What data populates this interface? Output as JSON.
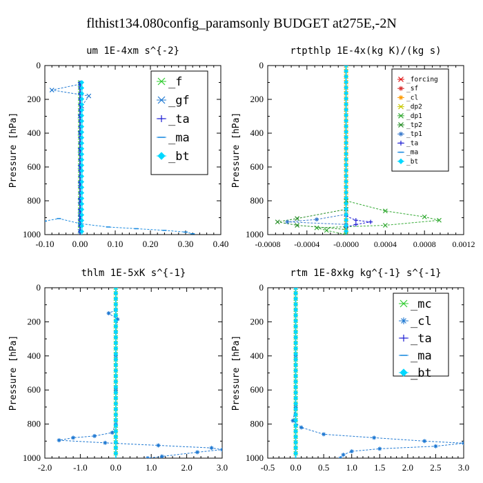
{
  "figure": {
    "title": "flthist134.080config_paramsonly  BUDGET at275E,-2N"
  },
  "chart_data": [
    {
      "type": "line",
      "title": "um  1E-4xm s^{-2}",
      "ylabel": "Pressure [hPa]",
      "xlim": [
        -0.1,
        0.4
      ],
      "ylim": [
        1000,
        0
      ],
      "xticks": [
        "-0.10",
        "0.00",
        "0.10",
        "0.20",
        "0.30",
        "0.40"
      ],
      "xtick_values": [
        -0.1,
        0.0,
        0.1,
        0.2,
        0.3,
        0.4
      ],
      "yticks": [
        "0",
        "200",
        "400",
        "600",
        "800",
        "1000"
      ],
      "ytick_values": [
        0,
        200,
        400,
        600,
        800,
        1000
      ],
      "legend_position": "top-right",
      "series": [
        {
          "name": "_f",
          "color": "#2ecc2e",
          "marker": "x",
          "points": [
            [
              0.0,
              100
            ],
            [
              0.0,
              200
            ],
            [
              0.0,
              300
            ],
            [
              0.0,
              400
            ],
            [
              0.0,
              500
            ],
            [
              0.0,
              600
            ],
            [
              0.0,
              700
            ],
            [
              0.0,
              800
            ],
            [
              0.0,
              900
            ],
            [
              0.0,
              1000
            ]
          ]
        },
        {
          "name": "_gf",
          "color": "#1e78d2",
          "marker": "x",
          "points": [
            [
              0.0,
              110
            ],
            [
              -0.08,
              145
            ],
            [
              0.025,
              180
            ],
            [
              0.005,
              240
            ],
            [
              0.0,
              300
            ],
            [
              0.0,
              400
            ],
            [
              0.0,
              500
            ],
            [
              0.0,
              600
            ],
            [
              0.0,
              700
            ],
            [
              0.0,
              800
            ],
            [
              0.0,
              860
            ],
            [
              0.0,
              900
            ],
            [
              0.0,
              940
            ],
            [
              0.0,
              980
            ]
          ]
        },
        {
          "name": "_ta",
          "color": "#1a1ad2",
          "marker": "+",
          "points": [
            [
              0.0,
              100
            ],
            [
              0.0,
              300
            ],
            [
              0.0,
              500
            ],
            [
              0.0,
              700
            ],
            [
              0.0,
              900
            ],
            [
              0.0,
              1000
            ]
          ]
        },
        {
          "name": "_ma",
          "color": "#1a8ae0",
          "marker": "dash",
          "points": [
            [
              -0.1,
              920
            ],
            [
              -0.06,
              905
            ],
            [
              0.0,
              935
            ],
            [
              0.08,
              955
            ],
            [
              0.16,
              965
            ],
            [
              0.24,
              975
            ],
            [
              0.3,
              985
            ],
            [
              0.32,
              995
            ]
          ]
        },
        {
          "name": "_bt",
          "color": "#00d8ff",
          "marker": "diamond",
          "points": [
            [
              0.005,
              100
            ],
            [
              0.005,
              300
            ],
            [
              0.005,
              500
            ],
            [
              0.005,
              700
            ],
            [
              0.005,
              900
            ],
            [
              0.005,
              1000
            ]
          ]
        }
      ]
    },
    {
      "type": "line",
      "title": "rtpthlp  1E-4x(kg K)/(kg s)",
      "ylabel": "Pressure [hPa]",
      "xlim": [
        -0.0008,
        0.0012
      ],
      "ylim": [
        1000,
        0
      ],
      "xticks": [
        "-0.0008",
        "-0.0004",
        "-0.0000",
        "0.0004",
        "0.0008",
        "0.0012"
      ],
      "xtick_values": [
        -0.0008,
        -0.0004,
        0.0,
        0.0004,
        0.0008,
        0.0012
      ],
      "yticks": [
        "0",
        "200",
        "400",
        "600",
        "800",
        "1000"
      ],
      "ytick_values": [
        0,
        200,
        400,
        600,
        800,
        1000
      ],
      "legend_position": "top-right",
      "series": [
        {
          "name": "_forcing",
          "color": "#e01010",
          "marker": "x",
          "points": [
            [
              0.0,
              0
            ],
            [
              0.0,
              200
            ],
            [
              0.0,
              400
            ],
            [
              0.0,
              600
            ],
            [
              0.0,
              800
            ],
            [
              0.0,
              1000
            ]
          ]
        },
        {
          "name": "_sf",
          "color": "#d83030",
          "marker": "star",
          "points": [
            [
              0.0,
              0
            ],
            [
              0.0,
              250
            ],
            [
              0.0,
              500
            ],
            [
              0.0,
              750
            ],
            [
              0.0,
              1000
            ]
          ]
        },
        {
          "name": "_cl",
          "color": "#ff9a00",
          "marker": "star",
          "points": [
            [
              0.0,
              0
            ],
            [
              0.0,
              300
            ],
            [
              0.0,
              600
            ],
            [
              0.0,
              900
            ],
            [
              0.0,
              1000
            ]
          ]
        },
        {
          "name": "_dp2",
          "color": "#c8c800",
          "marker": "x",
          "points": [
            [
              0.0,
              0
            ],
            [
              0.0,
              500
            ],
            [
              0.0,
              1000
            ]
          ]
        },
        {
          "name": "_dp1",
          "color": "#33aa33",
          "marker": "x",
          "points": [
            [
              0.0,
              800
            ],
            [
              0.0004,
              860
            ],
            [
              0.0008,
              895
            ],
            [
              0.00095,
              915
            ],
            [
              0.0004,
              945
            ],
            [
              -0.0003,
              960
            ],
            [
              -0.0002,
              975
            ],
            [
              0.0,
              1000
            ]
          ]
        },
        {
          "name": "_tp2",
          "color": "#228b22",
          "marker": "x",
          "points": [
            [
              0.0,
              850
            ],
            [
              -0.0005,
              905
            ],
            [
              -0.0007,
              925
            ],
            [
              -0.0005,
              945
            ],
            [
              0.0,
              970
            ]
          ]
        },
        {
          "name": "_tp1",
          "color": "#3a7acc",
          "marker": "star",
          "points": [
            [
              0.0,
              880
            ],
            [
              -0.0003,
              910
            ],
            [
              -0.0006,
              925
            ],
            [
              0.0,
              940
            ]
          ]
        },
        {
          "name": "_ta",
          "color": "#1a1ad2",
          "marker": "+",
          "points": [
            [
              0.0,
              890
            ],
            [
              0.0001,
              915
            ],
            [
              0.00025,
              925
            ],
            [
              0.0001,
              940
            ],
            [
              0.0,
              955
            ]
          ]
        },
        {
          "name": "_ma",
          "color": "#1a8ae0",
          "marker": "dash",
          "points": [
            [
              0.0,
              0
            ],
            [
              0.0,
              500
            ],
            [
              0.0,
              1000
            ]
          ]
        },
        {
          "name": "_bt",
          "color": "#00d8ff",
          "marker": "diamond",
          "points": [
            [
              0.0,
              0
            ],
            [
              0.0,
              500
            ],
            [
              0.0,
              1000
            ]
          ]
        }
      ]
    },
    {
      "type": "line",
      "title": "thlm  1E-5xK s^{-1}",
      "ylabel": "Pressure [hPa]",
      "xlim": [
        -2.0,
        3.0
      ],
      "ylim": [
        1000,
        0
      ],
      "xticks": [
        "-2.0",
        "-1.0",
        "0.0",
        "1.0",
        "2.0",
        "3.0"
      ],
      "xtick_values": [
        -2.0,
        -1.0,
        0.0,
        1.0,
        2.0,
        3.0
      ],
      "yticks": [
        "0",
        "200",
        "400",
        "600",
        "800",
        "1000"
      ],
      "ytick_values": [
        0,
        200,
        400,
        600,
        800,
        1000
      ],
      "legend_position": "top-right",
      "series": [
        {
          "name": "_mc",
          "color": "#2ecc2e",
          "marker": "x",
          "points": [
            [
              0.0,
              0
            ],
            [
              0.0,
              200
            ],
            [
              0.0,
              400
            ],
            [
              0.0,
              600
            ],
            [
              0.0,
              800
            ],
            [
              0.0,
              1000
            ]
          ]
        },
        {
          "name": "_cl",
          "color": "#1e78d2",
          "marker": "star",
          "points": [
            [
              0.0,
              130
            ],
            [
              -0.2,
              150
            ],
            [
              0.05,
              185
            ],
            [
              0.0,
              260
            ],
            [
              0.0,
              400
            ],
            [
              0.0,
              600
            ],
            [
              0.0,
              800
            ],
            [
              -0.1,
              850
            ],
            [
              -0.6,
              870
            ],
            [
              -1.2,
              880
            ],
            [
              -1.6,
              895
            ],
            [
              -0.3,
              910
            ],
            [
              1.2,
              925
            ],
            [
              2.7,
              940
            ],
            [
              3.0,
              950
            ],
            [
              2.3,
              965
            ],
            [
              1.3,
              990
            ],
            [
              0.9,
              1000
            ]
          ]
        },
        {
          "name": "_ta",
          "color": "#1a1ad2",
          "marker": "+",
          "points": [
            [
              0.0,
              0
            ],
            [
              0.0,
              500
            ],
            [
              0.0,
              1000
            ]
          ]
        },
        {
          "name": "_ma",
          "color": "#1a8ae0",
          "marker": "dash",
          "points": [
            [
              0.0,
              0
            ],
            [
              0.0,
              500
            ],
            [
              0.0,
              1000
            ]
          ]
        },
        {
          "name": "_bt",
          "color": "#00d8ff",
          "marker": "diamond",
          "points": [
            [
              0.0,
              0
            ],
            [
              0.0,
              500
            ],
            [
              0.0,
              1000
            ]
          ]
        }
      ]
    },
    {
      "type": "line",
      "title": "rtm  1E-8xkg kg^{-1} s^{-1}",
      "ylabel": "Pressure [hPa]",
      "xlim": [
        -0.5,
        3.0
      ],
      "ylim": [
        1000,
        0
      ],
      "xticks": [
        "-0.5",
        "0.0",
        "0.5",
        "1.0",
        "1.5",
        "2.0",
        "2.5",
        "3.0"
      ],
      "xtick_values": [
        -0.5,
        0.0,
        0.5,
        1.0,
        1.5,
        2.0,
        2.5,
        3.0
      ],
      "yticks": [
        "0",
        "200",
        "400",
        "600",
        "800",
        "1000"
      ],
      "ytick_values": [
        0,
        200,
        400,
        600,
        800,
        1000
      ],
      "legend_position": "top-right",
      "series": [
        {
          "name": "_mc",
          "color": "#2ecc2e",
          "marker": "x",
          "points": [
            [
              0.0,
              0
            ],
            [
              0.0,
              200
            ],
            [
              0.0,
              400
            ],
            [
              0.0,
              600
            ],
            [
              0.0,
              800
            ],
            [
              0.0,
              1000
            ]
          ]
        },
        {
          "name": "_cl",
          "color": "#1e78d2",
          "marker": "star",
          "points": [
            [
              0.0,
              0
            ],
            [
              0.0,
              400
            ],
            [
              0.0,
              700
            ],
            [
              -0.05,
              780
            ],
            [
              0.1,
              820
            ],
            [
              0.5,
              860
            ],
            [
              1.4,
              880
            ],
            [
              2.3,
              900
            ],
            [
              3.0,
              912
            ],
            [
              2.5,
              930
            ],
            [
              1.5,
              945
            ],
            [
              1.0,
              960
            ],
            [
              0.85,
              980
            ],
            [
              0.8,
              1000
            ]
          ]
        },
        {
          "name": "_ta",
          "color": "#1a1ad2",
          "marker": "+",
          "points": [
            [
              0.0,
              0
            ],
            [
              0.0,
              500
            ],
            [
              0.0,
              1000
            ]
          ]
        },
        {
          "name": "_ma",
          "color": "#1a8ae0",
          "marker": "dash",
          "points": [
            [
              0.0,
              0
            ],
            [
              0.0,
              500
            ],
            [
              0.0,
              1000
            ]
          ]
        },
        {
          "name": "_bt",
          "color": "#00d8ff",
          "marker": "diamond",
          "points": [
            [
              0.0,
              0
            ],
            [
              0.0,
              500
            ],
            [
              0.0,
              1000
            ]
          ]
        }
      ]
    }
  ]
}
